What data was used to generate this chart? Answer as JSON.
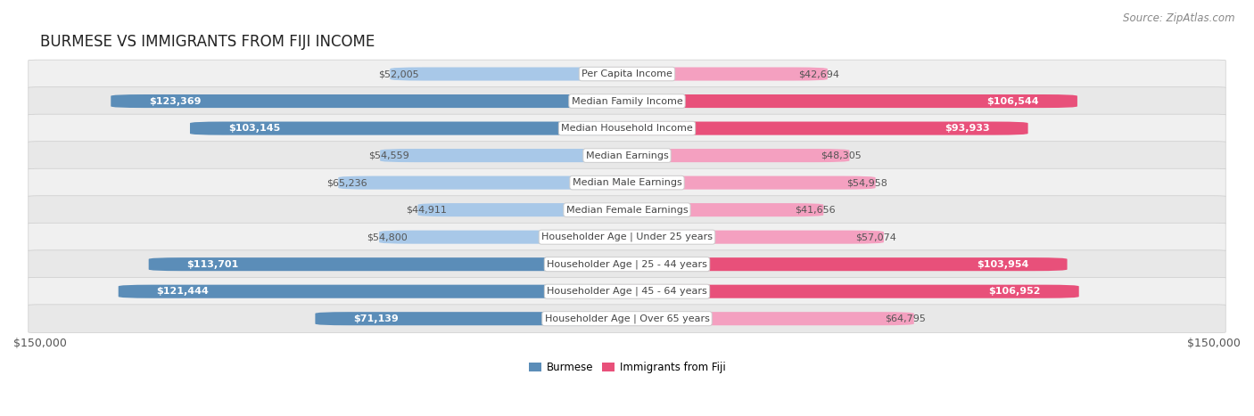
{
  "title": "BURMESE VS IMMIGRANTS FROM FIJI INCOME",
  "source": "Source: ZipAtlas.com",
  "categories": [
    "Per Capita Income",
    "Median Family Income",
    "Median Household Income",
    "Median Earnings",
    "Median Male Earnings",
    "Median Female Earnings",
    "Householder Age | Under 25 years",
    "Householder Age | 25 - 44 years",
    "Householder Age | 45 - 64 years",
    "Householder Age | Over 65 years"
  ],
  "burmese_values": [
    52005,
    123369,
    103145,
    54559,
    65236,
    44911,
    54800,
    113701,
    121444,
    71139
  ],
  "fiji_values": [
    42694,
    106544,
    93933,
    48305,
    54958,
    41656,
    57074,
    103954,
    106952,
    64795
  ],
  "burmese_labels": [
    "$52,005",
    "$123,369",
    "$103,145",
    "$54,559",
    "$65,236",
    "$44,911",
    "$54,800",
    "$113,701",
    "$121,444",
    "$71,139"
  ],
  "fiji_labels": [
    "$42,694",
    "$106,544",
    "$93,933",
    "$48,305",
    "$54,958",
    "$41,656",
    "$57,074",
    "$103,954",
    "$106,952",
    "$64,795"
  ],
  "burmese_color_strong": "#5b8db8",
  "burmese_color_light": "#a8c8e8",
  "fiji_color_strong": "#e8507a",
  "fiji_color_light": "#f4a0c0",
  "max_value": 150000,
  "bar_height": 0.38,
  "row_bg_even": "#f0f0f0",
  "row_bg_odd": "#e8e8e8",
  "legend_burmese": "Burmese",
  "legend_fiji": "Immigrants from Fiji",
  "x_tick_left": "$150,000",
  "x_tick_right": "$150,000",
  "title_fontsize": 12,
  "source_fontsize": 8.5,
  "label_fontsize": 8,
  "category_fontsize": 8,
  "axis_label_fontsize": 9,
  "inside_threshold": 70000
}
